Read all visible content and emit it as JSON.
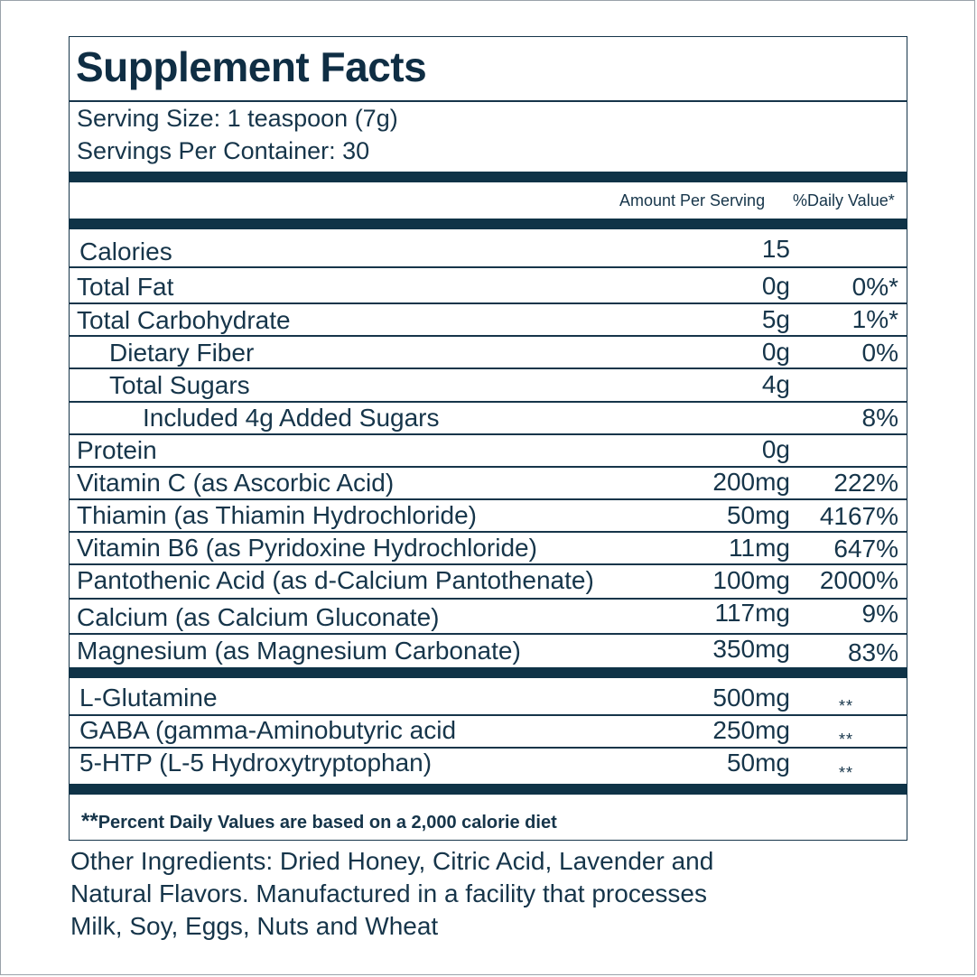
{
  "title": "Supplement Facts",
  "serving_size": "Serving Size: 1 teaspoon (7g)",
  "servings_per_container": "Servings Per Container: 30",
  "columns": {
    "amount": "Amount Per Serving",
    "daily_value": "%Daily Value*"
  },
  "rows": [
    {
      "name": "Calories",
      "amount": "15",
      "dv": ""
    },
    {
      "name": "Total Fat",
      "amount": "0g",
      "dv": "0%*"
    },
    {
      "name": "Total Carbohydrate",
      "amount": "5g",
      "dv": "1%*"
    },
    {
      "name": "Dietary Fiber",
      "amount": "0g",
      "dv": "0%"
    },
    {
      "name": "Total Sugars",
      "amount": "4g",
      "dv": ""
    },
    {
      "name": "Included 4g Added Sugars",
      "amount": "",
      "dv": "8%"
    },
    {
      "name": "Protein",
      "amount": "0g",
      "dv": ""
    },
    {
      "name": "Vitamin C (as Ascorbic Acid)",
      "amount": "200mg",
      "dv": "222%"
    },
    {
      "name": "Thiamin (as Thiamin Hydrochloride)",
      "amount": "50mg",
      "dv": "4167%"
    },
    {
      "name": "Vitamin B6 (as Pyridoxine Hydrochloride)",
      "amount": "11mg",
      "dv": "647%"
    },
    {
      "name": "Pantothenic Acid (as d-Calcium Pantothenate)",
      "amount": "100mg",
      "dv": "2000%"
    },
    {
      "name": "Calcium (as Calcium Gluconate)",
      "amount": "117mg",
      "dv": "9%"
    },
    {
      "name": "Magnesium (as Magnesium Carbonate)",
      "amount": "350mg",
      "dv": "83%"
    }
  ],
  "other_rows": [
    {
      "name": "L-Glutamine",
      "amount": "500mg",
      "dv": "**"
    },
    {
      "name": "GABA (gamma-Aminobutyric acid",
      "amount": "250mg",
      "dv": "**"
    },
    {
      "name": "5-HTP (L-5 Hydroxytryptophan)",
      "amount": "50mg",
      "dv": "**"
    }
  ],
  "footnote": {
    "mark": "**",
    "text": "Percent Daily Values are based on a 2,000 calorie diet"
  },
  "other_ingredients": [
    "Other Ingredients: Dried Honey, Citric Acid, Lavender and",
    "Natural Flavors. Manufactured in a facility that processes",
    "Milk, Soy, Eggs, Nuts and Wheat"
  ],
  "colors": {
    "text": "#16354a",
    "rule": "#0f3347"
  }
}
